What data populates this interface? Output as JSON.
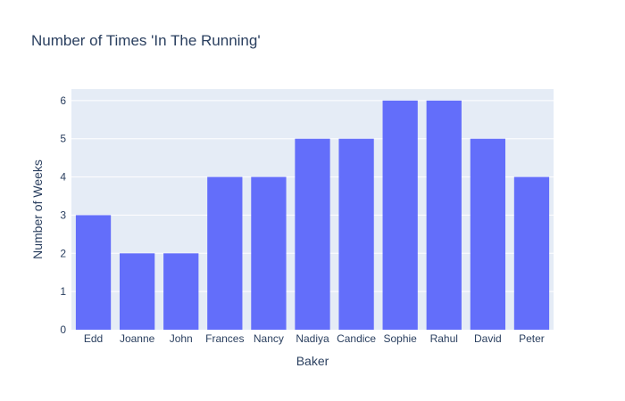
{
  "chart_data": {
    "type": "bar",
    "title": "Number of Times 'In The Running'",
    "xlabel": "Baker",
    "ylabel": "Number of Weeks",
    "categories": [
      "Edd",
      "Joanne",
      "John",
      "Frances",
      "Nancy",
      "Nadiya",
      "Candice",
      "Sophie",
      "Rahul",
      "David",
      "Peter"
    ],
    "values": [
      3,
      2,
      2,
      4,
      4,
      5,
      5,
      6,
      6,
      5,
      4
    ],
    "ylim": [
      0,
      6.3
    ],
    "yticks": [
      0,
      1,
      2,
      3,
      4,
      5,
      6
    ],
    "grid": true,
    "legend": "none"
  },
  "colors": {
    "bar": "#636efa",
    "plot_bg": "#e5ecf6",
    "grid": "#ffffff",
    "text": "#2a3f5f"
  }
}
